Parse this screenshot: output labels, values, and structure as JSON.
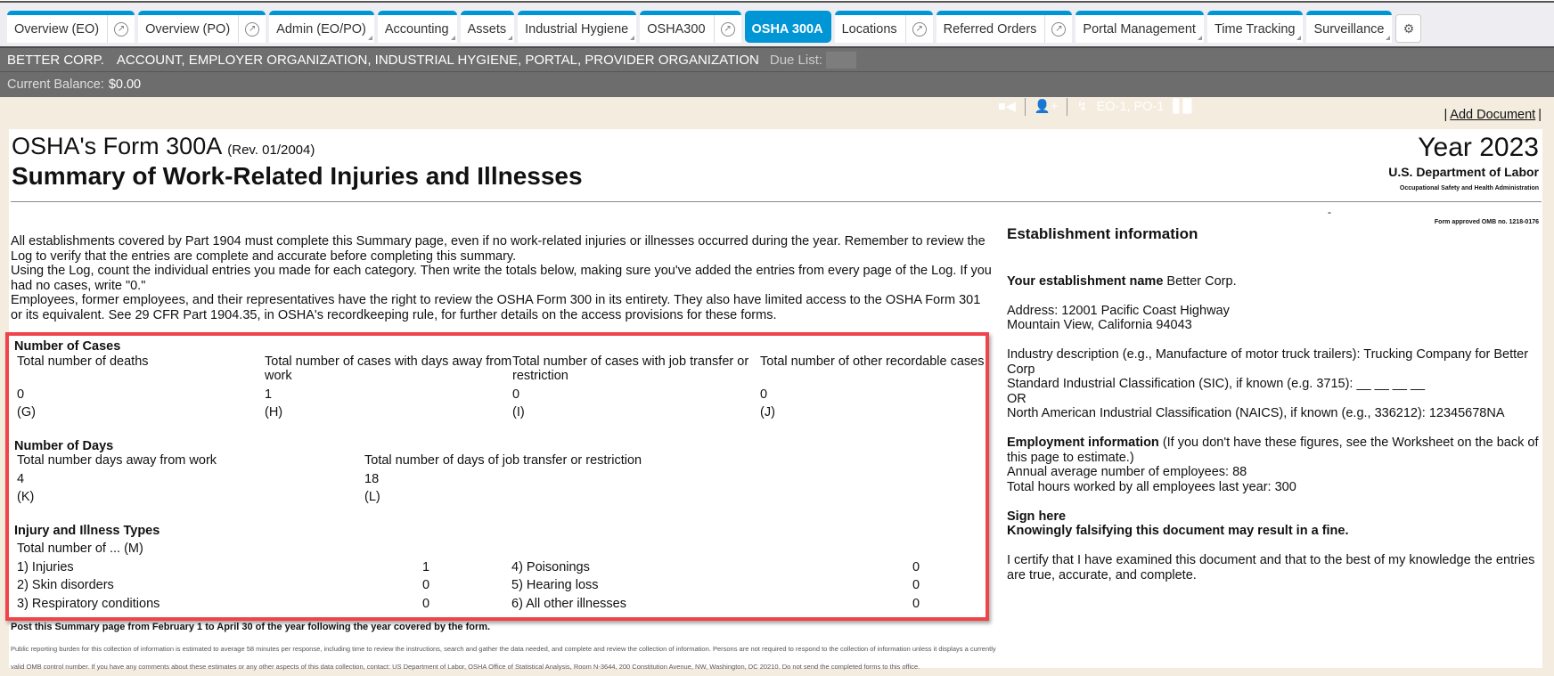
{
  "tabs": [
    {
      "label": "Overview (EO)",
      "ext": true
    },
    {
      "label": "Overview (PO)",
      "ext": true
    },
    {
      "label": "Admin (EO/PO)",
      "menu": true
    },
    {
      "label": "Accounting",
      "menu": true
    },
    {
      "label": "Assets",
      "menu": true
    },
    {
      "label": "Industrial Hygiene",
      "menu": true
    },
    {
      "label": "OSHA300",
      "ext": true
    },
    {
      "label": "OSHA 300A",
      "active": true
    },
    {
      "label": "Locations",
      "ext": true
    },
    {
      "label": "Referred Orders",
      "ext": true
    },
    {
      "label": "Portal Management",
      "menu": true
    },
    {
      "label": "Time Tracking",
      "menu": true
    },
    {
      "label": "Surveillance",
      "menu": true
    }
  ],
  "org": {
    "corp": "BETTER CORP.",
    "roles": "ACCOUNT, EMPLOYER ORGANIZATION, INDUSTRIAL HYGIENE, PORTAL, PROVIDER ORGANIZATION",
    "due_label": "Due List:",
    "ids": "EO-1, PO-1"
  },
  "balance": {
    "label": "Current Balance:",
    "value": "$0.00"
  },
  "add_document": "Add Document",
  "form": {
    "title": "OSHA's Form 300A",
    "rev": "(Rev. 01/2004)",
    "subtitle": "Summary of Work-Related Injuries and Illnesses",
    "year": "Year 2023",
    "dept": "U.S. Department of Labor",
    "agency": "Occupational Safety and Health Administration",
    "dash": "-",
    "omb": "Form approved OMB no. 1218-0176",
    "intro": [
      "All establishments covered by Part 1904 must complete this Summary page, even if no work-related injuries or illnesses occurred during the year. Remember to review the Log to verify that the entries are complete and accurate before completing this summary.",
      "Using the Log, count the individual entries you made for each category. Then write the totals below, making sure you've added the entries from every page of the Log. If you had no cases, write \"0.\"",
      "Employees, former employees, and their representatives have the right to review the OSHA Form 300 in its entirety. They also have limited access to the OSHA Form 301 or its equivalent. See 29 CFR Part 1904.35, in OSHA's recordkeeping rule, for further details on the access provisions for these forms."
    ],
    "cases": {
      "heading": "Number of Cases",
      "cols": [
        {
          "label": "Total number of deaths",
          "value": "0",
          "code": "(G)"
        },
        {
          "label": "Total number of cases with days away from work",
          "value": "1",
          "code": "(H)"
        },
        {
          "label": "Total number of cases with job transfer or restriction",
          "value": "0",
          "code": "(I)"
        },
        {
          "label": "Total number of other recordable cases",
          "value": "0",
          "code": "(J)"
        }
      ]
    },
    "days": {
      "heading": "Number of Days",
      "cols": [
        {
          "label": "Total number days away from work",
          "value": "4",
          "code": "(K)"
        },
        {
          "label": "Total number of days of job transfer or restriction",
          "value": "18",
          "code": "(L)"
        }
      ]
    },
    "types": {
      "heading": "Injury and Illness Types",
      "sub": "Total number of ... (M)",
      "items": [
        {
          "label": "1) Injuries",
          "value": "1"
        },
        {
          "label": "4) Poisonings",
          "value": "0"
        },
        {
          "label": "2) Skin disorders",
          "value": "0"
        },
        {
          "label": "5) Hearing loss",
          "value": "0"
        },
        {
          "label": "3) Respiratory conditions",
          "value": "0"
        },
        {
          "label": "6) All other illnesses",
          "value": "0"
        }
      ]
    },
    "post": "Post this Summary page from February 1 to April 30 of the year following the year covered by the form.",
    "fine": "Public reporting burden for this collection of information is estimated to average 58 minutes per response, including time to review the instructions, search and gather the data needed, and complete and review the collection of information. Persons are not required to respond to the collection of information unless it displays a currently valid OMB control number. If you have any comments about these estimates or any other aspects of this data collection, contact: US Department of Labor, OSHA Office of Statistical Analysis, Room N-3644, 200 Constitution Avenue, NW, Washington, DC 20210. Do not send the completed forms to this office."
  },
  "establishment": {
    "heading": "Establishment information",
    "name_label": "Your establishment name",
    "name": "Better Corp.",
    "address1": "Address: 12001 Pacific Coast Highway",
    "address2": "Mountain View, California 94043",
    "industry": "Industry description (e.g., Manufacture of motor truck trailers): Trucking Company for Better Corp",
    "sic": "Standard Industrial Classification (SIC), if known (e.g. 3715): __ __ __ __",
    "or": "OR",
    "naics": "North American Industrial Classification (NAICS), if known (e.g., 336212): 12345678NA",
    "emp_label": "Employment information",
    "emp_note": "(If you don't have these figures, see the Worksheet on the back of this page to estimate.)",
    "avg": "Annual average number of employees: 88",
    "hours": "Total hours worked by all employees last year: 300",
    "sign": "Sign here",
    "warn": "Knowingly falsifying this document may result in a fine.",
    "certify": "I certify that I have examined this document and that to the best of my knowledge the entries are true, accurate, and complete."
  }
}
